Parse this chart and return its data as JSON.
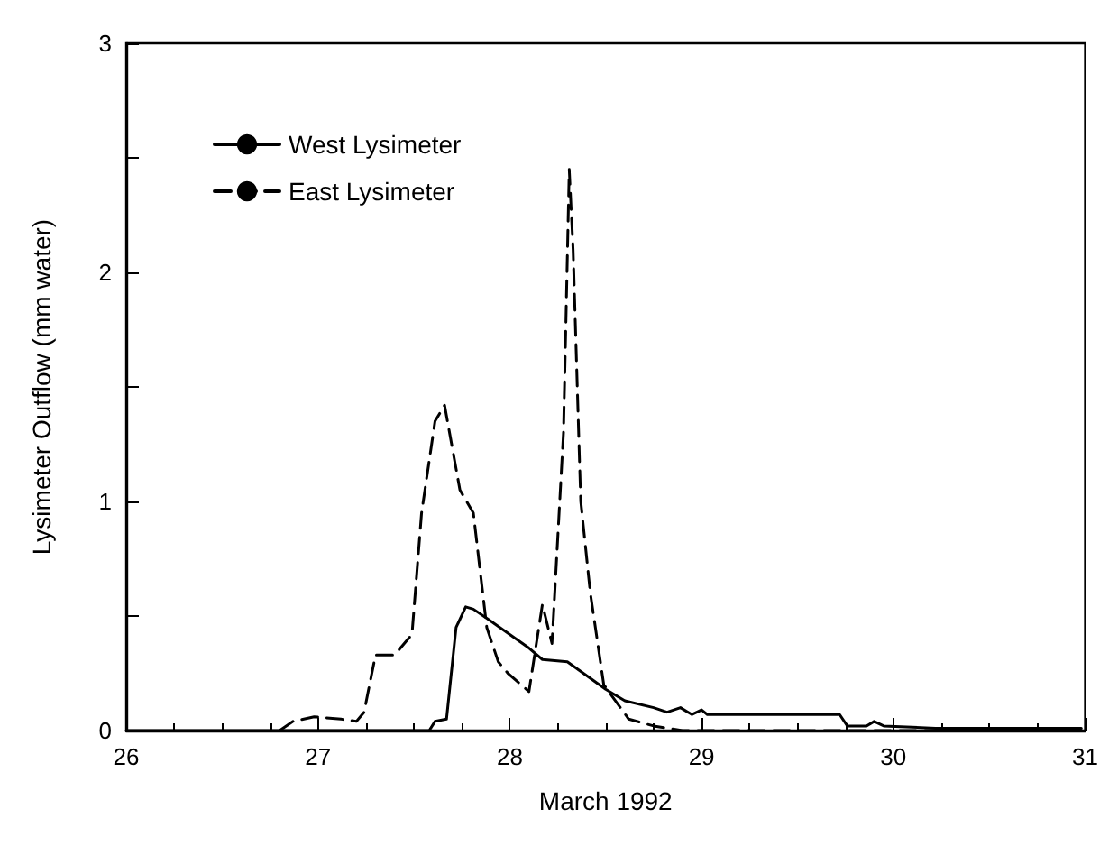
{
  "chart_data": {
    "type": "line",
    "xlabel": "March 1992",
    "ylabel": "Lysimeter Outflow (mm water)",
    "xlim": [
      26,
      31
    ],
    "xticks": [
      26,
      27,
      28,
      29,
      30,
      31
    ],
    "ylim": [
      0,
      3
    ],
    "yticks": [
      0,
      1,
      2,
      3
    ],
    "grid": false,
    "legend": "top left",
    "marker": "none",
    "series": [
      {
        "name": "West Lysimeter",
        "color": "#000000",
        "line_style": "solid",
        "x": [
          26,
          27.58,
          27.61,
          27.67,
          27.72,
          27.77,
          27.81,
          27.88,
          28.1,
          28.17,
          28.3,
          28.5,
          28.6,
          28.75,
          28.82,
          28.89,
          28.95,
          29.0,
          29.03,
          29.72,
          29.76,
          29.86,
          29.9,
          29.95,
          30.22,
          30.98
        ],
        "values": [
          0,
          0,
          0.04,
          0.05,
          0.45,
          0.54,
          0.53,
          0.49,
          0.36,
          0.31,
          0.3,
          0.18,
          0.13,
          0.1,
          0.08,
          0.1,
          0.07,
          0.09,
          0.07,
          0.07,
          0.02,
          0.02,
          0.04,
          0.02,
          0.01,
          0.01
        ]
      },
      {
        "name": "East Lysimeter",
        "color": "#000000",
        "line_style": "dashed",
        "x": [
          26.8,
          26.87,
          26.98,
          27.12,
          27.2,
          27.24,
          27.3,
          27.4,
          27.49,
          27.54,
          27.61,
          27.66,
          27.74,
          27.81,
          27.88,
          27.94,
          27.99,
          28.1,
          28.17,
          28.22,
          28.28,
          28.31,
          28.33,
          28.37,
          28.42,
          28.49,
          28.62,
          28.75,
          28.9,
          29.5,
          30.0,
          30.5,
          30.98
        ],
        "values": [
          0,
          0.04,
          0.06,
          0.05,
          0.04,
          0.08,
          0.33,
          0.33,
          0.42,
          0.95,
          1.35,
          1.42,
          1.05,
          0.95,
          0.45,
          0.3,
          0.25,
          0.17,
          0.55,
          0.38,
          1.3,
          2.45,
          2.1,
          1.0,
          0.6,
          0.2,
          0.05,
          0.02,
          0,
          0,
          0,
          0,
          0
        ]
      }
    ]
  }
}
